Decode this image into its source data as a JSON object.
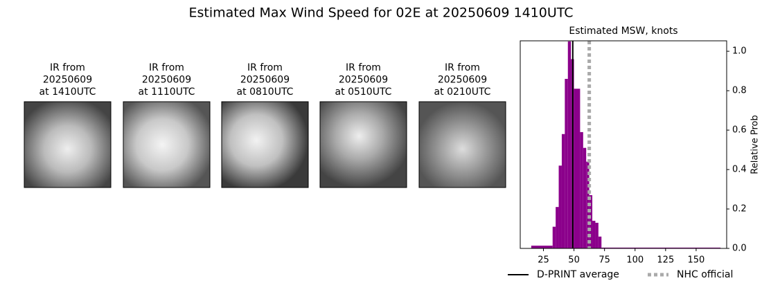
{
  "title": "Estimated Max Wind Speed for 02E at 20250609 1410UTC",
  "panels": [
    {
      "label": [
        "IR from",
        "20250609",
        "at 1410UTC"
      ]
    },
    {
      "label": [
        "IR from",
        "20250609",
        "at 1110UTC"
      ]
    },
    {
      "label": [
        "IR from",
        "20250609",
        "at 0810UTC"
      ]
    },
    {
      "label": [
        "IR from",
        "20250609",
        "at 0510UTC"
      ]
    },
    {
      "label": [
        "IR from",
        "20250609",
        "at 0210UTC"
      ]
    }
  ],
  "chart_data": {
    "type": "histogram",
    "title": "Estimated MSW, knots",
    "ylabel": "Relative Prob",
    "color": "#8b008b",
    "bins": [
      15,
      32.5,
      35,
      37.5,
      40,
      42.5,
      45,
      47.5,
      50,
      52.5,
      55,
      57.5,
      60,
      62.5,
      65,
      67.5,
      70,
      72.5,
      170
    ],
    "values": [
      0.014,
      0.11,
      0.21,
      0.42,
      0.58,
      0.86,
      1.05,
      0.96,
      0.81,
      0.81,
      0.59,
      0.51,
      0.44,
      0.27,
      0.14,
      0.13,
      0.06,
      0.004
    ],
    "xlim": [
      6,
      175
    ],
    "xticks": [
      25,
      50,
      75,
      100,
      125,
      150
    ],
    "ylim": [
      0,
      1.053
    ],
    "yticks": [
      {
        "value": 0,
        "label": "0.0"
      },
      0.2,
      0.4,
      0.6,
      0.8,
      {
        "value": 1,
        "label": "1.0"
      }
    ],
    "lines": [
      {
        "name": "D-PRINT average",
        "value": 49,
        "color": "#000000",
        "style": "solid"
      },
      {
        "name": "NHC official",
        "value": 62.5,
        "color": "#aaaaaa",
        "style": "dotted"
      }
    ]
  }
}
